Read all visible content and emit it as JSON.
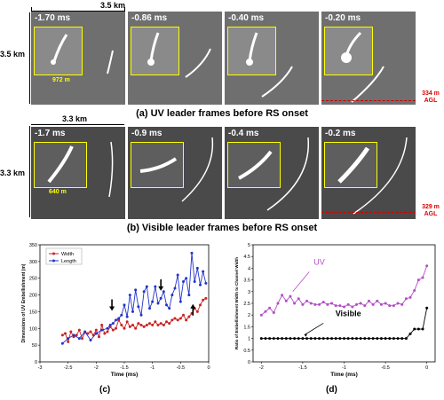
{
  "panel_a": {
    "width_label": "3.5 km",
    "height_label": "3.5 km",
    "frames": [
      "-1.70 ms",
      "-0.86 ms",
      "-0.40 ms",
      "-0.20 ms"
    ],
    "inset_scale": "972 m",
    "agl_value": "334 m",
    "agl_unit": "AGL",
    "caption": "(a) UV leader frames before RS onset"
  },
  "panel_b": {
    "width_label": "3.3 km",
    "height_label": "3.3 km",
    "frames": [
      "-1.7 ms",
      "-0.9 ms",
      "-0.4 ms",
      "-0.2 ms"
    ],
    "inset_scale": "640 m",
    "agl_value": "329 m",
    "agl_unit": "AGL",
    "caption": "(b) Visible leader frames before RS onset"
  },
  "chart_data": [
    {
      "type": "line",
      "xlabel": "Time (ms)",
      "ylabel": "Dimensions of UV Embellishment (m)",
      "xlim": [
        -3,
        0
      ],
      "ylim": [
        0,
        350
      ],
      "xticks": [
        "-3",
        "-2.5",
        "-2",
        "-1.5",
        "-1",
        "-0.5",
        "0"
      ],
      "yticks": [
        "0",
        "50",
        "100",
        "150",
        "200",
        "250",
        "300",
        "350"
      ],
      "legend": [
        "Width",
        "Length"
      ],
      "series": [
        {
          "name": "Width",
          "color": "#cc2222",
          "x": [
            -2.6,
            -2.55,
            -2.5,
            -2.45,
            -2.4,
            -2.35,
            -2.3,
            -2.25,
            -2.2,
            -2.15,
            -2.1,
            -2.05,
            -2.0,
            -1.95,
            -1.9,
            -1.85,
            -1.8,
            -1.75,
            -1.7,
            -1.65,
            -1.6,
            -1.55,
            -1.5,
            -1.45,
            -1.4,
            -1.35,
            -1.3,
            -1.25,
            -1.2,
            -1.15,
            -1.1,
            -1.05,
            -1.0,
            -0.95,
            -0.9,
            -0.85,
            -0.8,
            -0.75,
            -0.7,
            -0.65,
            -0.6,
            -0.55,
            -0.5,
            -0.45,
            -0.4,
            -0.35,
            -0.3,
            -0.25,
            -0.2,
            -0.15,
            -0.1,
            -0.05
          ],
          "values": [
            80,
            85,
            60,
            90,
            75,
            80,
            95,
            70,
            88,
            85,
            90,
            80,
            95,
            75,
            110,
            85,
            90,
            105,
            95,
            100,
            125,
            110,
            100,
            120,
            105,
            110,
            100,
            115,
            110,
            105,
            110,
            115,
            110,
            120,
            110,
            115,
            110,
            120,
            115,
            125,
            130,
            125,
            130,
            140,
            125,
            135,
            145,
            160,
            150,
            170,
            185,
            190
          ]
        },
        {
          "name": "Length",
          "color": "#2233cc",
          "x": [
            -2.6,
            -2.5,
            -2.4,
            -2.3,
            -2.2,
            -2.1,
            -2.0,
            -1.9,
            -1.8,
            -1.75,
            -1.7,
            -1.65,
            -1.6,
            -1.55,
            -1.5,
            -1.45,
            -1.4,
            -1.35,
            -1.3,
            -1.25,
            -1.2,
            -1.15,
            -1.1,
            -1.05,
            -1.0,
            -0.95,
            -0.9,
            -0.85,
            -0.8,
            -0.75,
            -0.7,
            -0.65,
            -0.6,
            -0.55,
            -0.5,
            -0.45,
            -0.4,
            -0.35,
            -0.3,
            -0.25,
            -0.2,
            -0.15,
            -0.1,
            -0.05
          ],
          "values": [
            55,
            70,
            80,
            70,
            90,
            65,
            85,
            95,
            100,
            110,
            115,
            125,
            130,
            140,
            170,
            135,
            200,
            150,
            215,
            165,
            140,
            210,
            225,
            160,
            180,
            225,
            175,
            190,
            210,
            170,
            160,
            200,
            220,
            260,
            180,
            240,
            250,
            200,
            325,
            240,
            280,
            230,
            270,
            235
          ]
        }
      ],
      "annotations": [
        {
          "type": "arrow-down",
          "x": -1.72,
          "y": 155
        },
        {
          "type": "arrow-down",
          "x": -0.85,
          "y": 215
        },
        {
          "type": "arrow-up",
          "x": -0.28,
          "y": 165
        }
      ],
      "subcaption": "(c)"
    },
    {
      "type": "line",
      "xlabel": "Time (ms)",
      "ylabel": "Ratio of Embellishment Width to Channel Width",
      "xlim": [
        -2.1,
        0.1
      ],
      "ylim": [
        0,
        5
      ],
      "xticks": [
        "-2",
        "-1.5",
        "-1",
        "-0.5",
        "0"
      ],
      "yticks": [
        "0",
        "0.5",
        "1",
        "1.5",
        "2",
        "2.5",
        "3",
        "3.5",
        "4",
        "4.5",
        "5"
      ],
      "series": [
        {
          "name": "UV",
          "color": "#b44cc8",
          "x": [
            -2.0,
            -1.95,
            -1.9,
            -1.85,
            -1.8,
            -1.75,
            -1.7,
            -1.65,
            -1.6,
            -1.55,
            -1.5,
            -1.45,
            -1.4,
            -1.35,
            -1.3,
            -1.25,
            -1.2,
            -1.15,
            -1.1,
            -1.05,
            -1.0,
            -0.95,
            -0.9,
            -0.85,
            -0.8,
            -0.75,
            -0.7,
            -0.65,
            -0.6,
            -0.55,
            -0.5,
            -0.45,
            -0.4,
            -0.35,
            -0.3,
            -0.25,
            -0.2,
            -0.15,
            -0.1,
            -0.05,
            0.0
          ],
          "values": [
            2.0,
            2.15,
            2.3,
            2.1,
            2.5,
            2.85,
            2.6,
            2.8,
            2.5,
            2.7,
            2.45,
            2.6,
            2.5,
            2.45,
            2.45,
            2.55,
            2.45,
            2.5,
            2.4,
            2.4,
            2.35,
            2.45,
            2.35,
            2.45,
            2.5,
            2.4,
            2.6,
            2.45,
            2.6,
            2.45,
            2.5,
            2.4,
            2.4,
            2.5,
            2.45,
            2.7,
            2.75,
            3.05,
            3.5,
            3.6,
            4.1
          ]
        },
        {
          "name": "Visible",
          "color": "#000000",
          "x": [
            -2.0,
            -1.95,
            -1.9,
            -1.85,
            -1.8,
            -1.75,
            -1.7,
            -1.65,
            -1.6,
            -1.55,
            -1.5,
            -1.45,
            -1.4,
            -1.35,
            -1.3,
            -1.25,
            -1.2,
            -1.15,
            -1.1,
            -1.05,
            -1.0,
            -0.95,
            -0.9,
            -0.85,
            -0.8,
            -0.75,
            -0.7,
            -0.65,
            -0.6,
            -0.55,
            -0.5,
            -0.45,
            -0.4,
            -0.35,
            -0.3,
            -0.25,
            -0.2,
            -0.15,
            -0.1,
            -0.05,
            0.0
          ],
          "values": [
            1,
            1,
            1,
            1,
            1,
            1,
            1,
            1,
            1,
            1,
            1,
            1,
            1,
            1,
            1,
            1,
            1,
            1,
            1,
            1,
            1,
            1,
            1,
            1,
            1,
            1,
            1,
            1,
            1,
            1,
            1,
            1,
            1,
            1,
            1,
            1,
            1.2,
            1.4,
            1.4,
            1.4,
            2.3
          ]
        }
      ],
      "subcaption": "(d)"
    }
  ]
}
